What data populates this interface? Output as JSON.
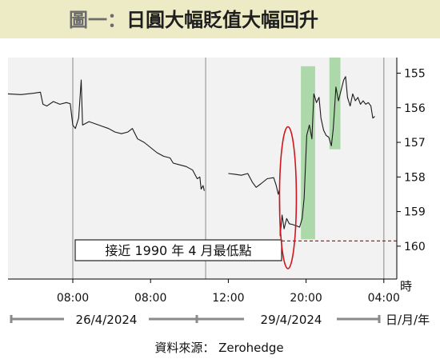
{
  "title": {
    "prefix": "圖一：",
    "main": "日圓大幅貶值大幅回升"
  },
  "chart_data": {
    "type": "line",
    "y_unit": "時",
    "x_unit": "日/月/年",
    "yticks": [
      155,
      156,
      157,
      158,
      159,
      160
    ],
    "ylim": [
      154.55,
      160.95
    ],
    "y_inverted": true,
    "x_range": [
      0,
      60
    ],
    "xticks": [
      {
        "x": 10,
        "label": "08:00"
      },
      {
        "x": 22,
        "label": "08:00"
      },
      {
        "x": 34,
        "label": "12:00"
      },
      {
        "x": 46,
        "label": "20:00"
      },
      {
        "x": 58,
        "label": "04:00"
      }
    ],
    "session_breaks": [
      10,
      30.5,
      58
    ],
    "dates": [
      "26/4/2024",
      "29/4/2024"
    ],
    "series": [
      {
        "segments": [
          [
            [
              0,
              155.6
            ],
            [
              2,
              155.62
            ],
            [
              4,
              155.58
            ],
            [
              5,
              155.55
            ],
            [
              5.4,
              155.9
            ],
            [
              6,
              155.95
            ],
            [
              7,
              155.82
            ],
            [
              8,
              155.9
            ],
            [
              9,
              155.85
            ],
            [
              9.6,
              155.88
            ],
            [
              10,
              156.5
            ],
            [
              10.4,
              156.6
            ],
            [
              10.9,
              156.3
            ],
            [
              11.3,
              155.2
            ],
            [
              11.5,
              156.5
            ],
            [
              12.5,
              156.4
            ],
            [
              14,
              156.5
            ],
            [
              15.5,
              156.6
            ],
            [
              16.5,
              156.7
            ],
            [
              17.5,
              156.75
            ],
            [
              18.5,
              156.7
            ],
            [
              19.2,
              156.6
            ],
            [
              20,
              156.9
            ],
            [
              21,
              157.0
            ],
            [
              22,
              157.15
            ],
            [
              23,
              157.3
            ],
            [
              24,
              157.4
            ],
            [
              25,
              157.45
            ],
            [
              25.5,
              157.6
            ],
            [
              26.5,
              157.65
            ],
            [
              27.5,
              157.7
            ],
            [
              28.5,
              157.8
            ],
            [
              29.2,
              158.05
            ],
            [
              29.6,
              158.0
            ],
            [
              29.8,
              158.35
            ],
            [
              30.1,
              158.25
            ],
            [
              30.3,
              158.4
            ]
          ],
          [
            [
              34,
              157.9
            ],
            [
              35,
              157.92
            ],
            [
              36,
              157.95
            ],
            [
              37,
              157.9
            ],
            [
              37.7,
              158.15
            ],
            [
              38.3,
              158.3
            ],
            [
              39,
              158.2
            ],
            [
              40,
              158.05
            ],
            [
              41,
              158.02
            ],
            [
              41.4,
              158.25
            ],
            [
              41.7,
              158.5
            ],
            [
              41.9,
              158.35
            ],
            [
              42,
              159.7
            ],
            [
              42.3,
              159.1
            ],
            [
              42.6,
              159.5
            ],
            [
              43,
              159.2
            ],
            [
              43.4,
              159.35
            ],
            [
              44,
              159.38
            ],
            [
              44.6,
              159.42
            ],
            [
              45,
              159.45
            ],
            [
              45.4,
              159.2
            ],
            [
              45.7,
              158.6
            ],
            [
              46.1,
              156.8
            ],
            [
              46.5,
              156.5
            ],
            [
              46.9,
              156.9
            ],
            [
              47.2,
              155.6
            ],
            [
              47.6,
              155.85
            ],
            [
              48,
              155.7
            ],
            [
              48.3,
              156.3
            ],
            [
              48.7,
              156.65
            ],
            [
              49.1,
              156.8
            ],
            [
              49.5,
              156.85
            ],
            [
              49.9,
              157.1
            ],
            [
              50.2,
              156.6
            ],
            [
              50.6,
              155.4
            ],
            [
              51,
              155.8
            ],
            [
              51.4,
              155.5
            ],
            [
              51.8,
              155.2
            ],
            [
              52.1,
              155.1
            ],
            [
              52.4,
              155.7
            ],
            [
              52.8,
              155.95
            ],
            [
              53.2,
              155.6
            ],
            [
              53.6,
              155.8
            ],
            [
              54,
              155.7
            ],
            [
              54.4,
              155.9
            ],
            [
              54.8,
              155.8
            ],
            [
              55.2,
              155.9
            ],
            [
              55.6,
              155.85
            ],
            [
              56,
              155.95
            ],
            [
              56.3,
              156.3
            ],
            [
              56.6,
              156.25
            ]
          ]
        ]
      }
    ],
    "highlight_ranges": [
      {
        "x0": 45.2,
        "x1": 47.4,
        "y0": 154.8,
        "y1": 159.8
      },
      {
        "x0": 49.6,
        "x1": 51.3,
        "y0": 154.55,
        "y1": 157.2
      }
    ],
    "annotation": {
      "text": "接近 1990 年 4 月最低點",
      "y": 159.85
    },
    "ellipse_mark": {
      "x": 43.2,
      "y": 158.6,
      "rx": 1.3,
      "ry": 2.05
    },
    "source": "資料來源： Zerohedge"
  },
  "colors": {
    "title_band": "#ecebc6",
    "highlight": "#7ec87a",
    "reference": "#c0141a",
    "line": "#1a1a1a"
  }
}
